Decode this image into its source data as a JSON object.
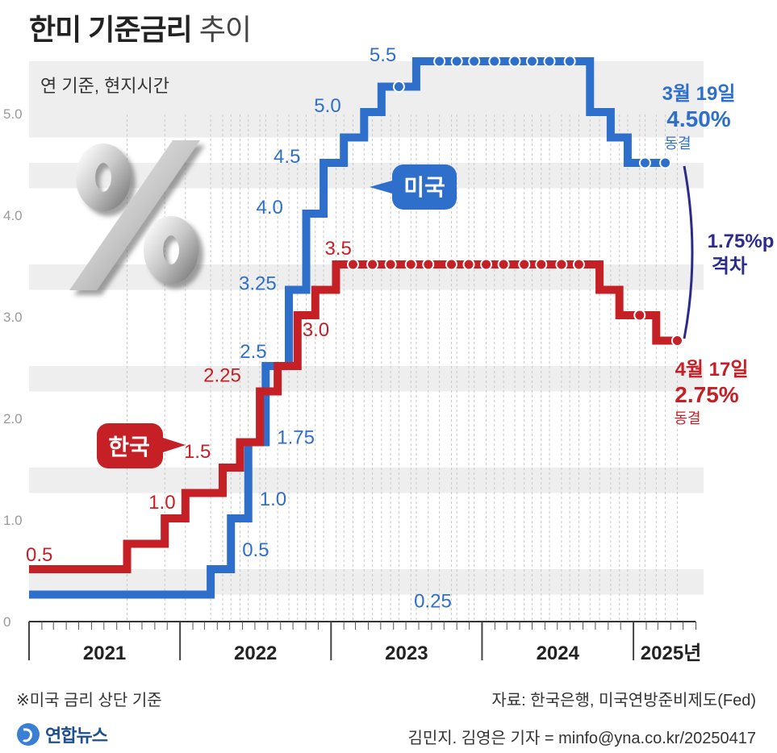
{
  "title": {
    "bold": "한미 기준금리",
    "light": "추이"
  },
  "subtitle": "연 기준, 현지시간",
  "colors": {
    "us": "#2f6fcc",
    "kr": "#c42026",
    "gap": "#2b2b8c",
    "band": "#eeeeee"
  },
  "chart_data": {
    "type": "line",
    "step": true,
    "y_axis": {
      "range": [
        0,
        5.5
      ],
      "ticks": [
        "0",
        "1.0",
        "2.0",
        "3.0",
        "4.0",
        "5.0"
      ]
    },
    "x_axis": {
      "range": [
        "2021-01-01",
        "2025-05-31"
      ],
      "years": [
        "2021",
        "2022",
        "2023",
        "2024",
        "2025년"
      ]
    },
    "series": [
      {
        "name": "미국",
        "color": "#2f6fcc",
        "steps": [
          [
            "2021-01-01",
            0.25
          ],
          [
            "2022-03-16",
            0.5
          ],
          [
            "2022-05-04",
            1.0
          ],
          [
            "2022-06-15",
            1.75
          ],
          [
            "2022-07-27",
            2.5
          ],
          [
            "2022-09-21",
            3.25
          ],
          [
            "2022-11-02",
            4.0
          ],
          [
            "2022-12-14",
            4.5
          ],
          [
            "2023-02-01",
            4.75
          ],
          [
            "2023-03-22",
            5.0
          ],
          [
            "2023-05-03",
            5.25
          ],
          [
            "2023-07-26",
            5.5
          ],
          [
            "2024-09-18",
            5.0
          ],
          [
            "2024-11-07",
            4.75
          ],
          [
            "2024-12-18",
            4.5
          ]
        ],
        "end": [
          "2025-03-19",
          4.5
        ],
        "holds": [
          "2023-06-14",
          "2023-09-20",
          "2023-11-01",
          "2023-12-13",
          "2024-01-31",
          "2024-03-20",
          "2024-05-01",
          "2024-06-12",
          "2024-07-31",
          "2025-01-29",
          "2025-03-19"
        ],
        "labels": [
          {
            "text": "0.25",
            "x": "2022-03-16",
            "y": 0.25
          },
          {
            "text": "0.5",
            "x": "2022-05-04",
            "y": 0.5
          },
          {
            "text": "1.0",
            "x": "2022-06-15",
            "y": 1.0
          },
          {
            "text": "1.75",
            "x": "2022-07-27",
            "y": 1.75
          },
          {
            "text": "2.5",
            "x": "2022-07-27",
            "y": 2.5
          },
          {
            "text": "3.25",
            "x": "2022-09-21",
            "y": 3.25
          },
          {
            "text": "4.0",
            "x": "2022-11-02",
            "y": 4.0
          },
          {
            "text": "4.5",
            "x": "2022-12-14",
            "y": 4.5
          },
          {
            "text": "5.0",
            "x": "2023-03-22",
            "y": 5.0
          },
          {
            "text": "5.5",
            "x": "2023-07-26",
            "y": 5.5
          }
        ]
      },
      {
        "name": "한국",
        "color": "#c42026",
        "steps": [
          [
            "2021-01-01",
            0.5
          ],
          [
            "2021-08-26",
            0.75
          ],
          [
            "2021-11-25",
            1.0
          ],
          [
            "2022-01-14",
            1.25
          ],
          [
            "2022-04-14",
            1.5
          ],
          [
            "2022-05-26",
            1.75
          ],
          [
            "2022-07-13",
            2.25
          ],
          [
            "2022-08-25",
            2.5
          ],
          [
            "2022-10-12",
            3.0
          ],
          [
            "2022-11-24",
            3.25
          ],
          [
            "2023-01-13",
            3.5
          ],
          [
            "2024-10-11",
            3.25
          ],
          [
            "2024-11-28",
            3.0
          ],
          [
            "2025-02-25",
            2.75
          ]
        ],
        "end": [
          "2025-04-17",
          2.75
        ],
        "holds": [
          "2023-02-23",
          "2023-04-11",
          "2023-05-25",
          "2023-07-13",
          "2023-08-24",
          "2023-10-19",
          "2023-11-30",
          "2024-01-11",
          "2024-02-22",
          "2024-04-12",
          "2024-05-23",
          "2024-07-11",
          "2024-08-22",
          "2025-01-16",
          "2025-04-17"
        ],
        "labels": [
          {
            "text": "0.5",
            "x": "2021-01-01",
            "y": 0.5
          },
          {
            "text": "1.0",
            "x": "2021-11-25",
            "y": 1.0
          },
          {
            "text": "1.5",
            "x": "2022-04-14",
            "y": 1.5
          },
          {
            "text": "2.25",
            "x": "2022-07-13",
            "y": 2.25
          },
          {
            "text": "3.0",
            "x": "2022-10-12",
            "y": 3.0
          },
          {
            "text": "3.5",
            "x": "2023-01-13",
            "y": 3.5
          }
        ]
      }
    ]
  },
  "annotations": {
    "us_badge": "미국",
    "kr_badge": "한국",
    "us_end": {
      "date": "3월 19일",
      "rate": "4.50%",
      "status": "동결"
    },
    "kr_end": {
      "date": "4월 17일",
      "rate": "2.75%",
      "status": "동결"
    },
    "gap": {
      "value": "1.75%p",
      "label": "격차"
    }
  },
  "footer": {
    "note": "※미국 금리 상단 기준",
    "source": "자료: 한국은행, 미국연방준비제도(Fed)",
    "credit": "김민지. 김영은 기자 = minfo@yna.co.kr/20250417",
    "logo_text": "연합뉴스"
  }
}
